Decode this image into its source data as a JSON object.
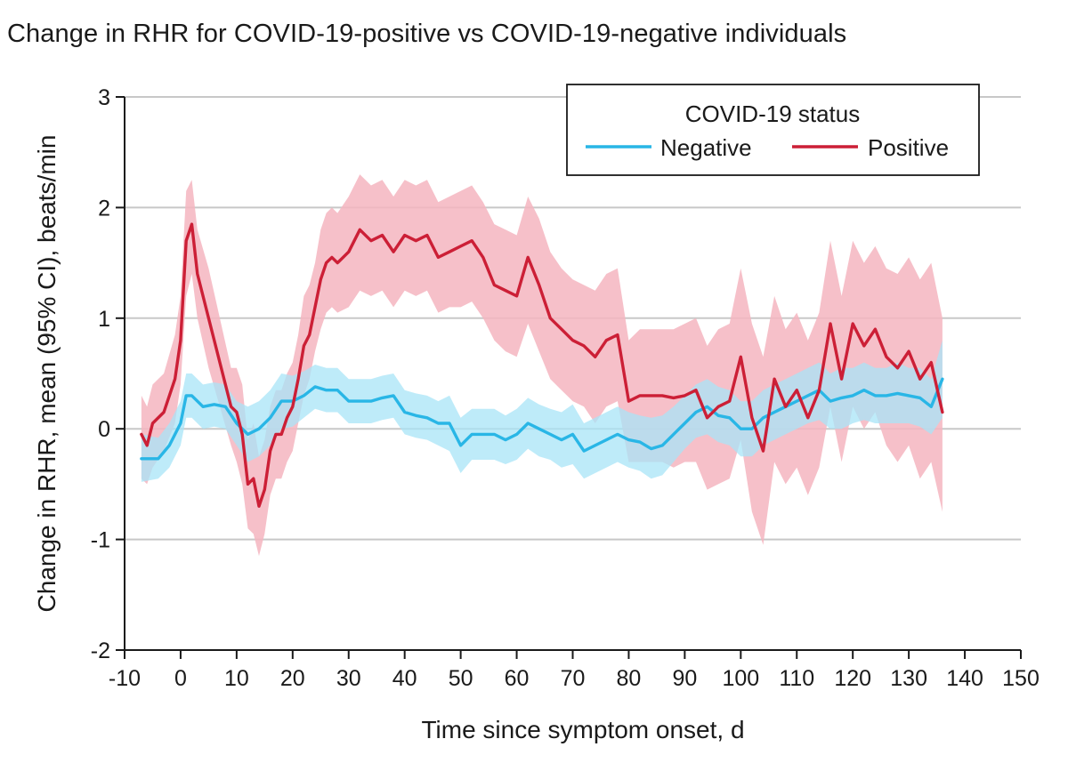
{
  "chart_data": {
    "type": "line",
    "title": "Change in RHR for COVID-19-positive vs COVID-19-negative individuals",
    "xlabel": "Time since symptom onset, d",
    "ylabel": "Change in RHR, mean (95% CI), beats/min",
    "xlim": [
      -10,
      150
    ],
    "ylim": [
      -2,
      3
    ],
    "xticks": [
      "-10",
      "0",
      "10",
      "20",
      "30",
      "40",
      "50",
      "60",
      "70",
      "80",
      "90",
      "100",
      "110",
      "120",
      "130",
      "140",
      "150"
    ],
    "yticks": [
      "3",
      "2",
      "1",
      "0",
      "-1",
      "-2"
    ],
    "grid": "horizontal",
    "legend": {
      "title": "COVID-19 status",
      "position": "top-right",
      "entries": [
        "Negative",
        "Positive"
      ]
    },
    "colors": {
      "negative_line": "#29b6e6",
      "negative_band": "#a8e4f7",
      "positive_line": "#cc1f36",
      "positive_band": "#f4b5bf",
      "grid": "#c8c8c8",
      "axis": "#1a1a1a"
    },
    "series": [
      {
        "name": "Negative",
        "x": [
          -7,
          -4,
          -2,
          0,
          1,
          2,
          4,
          6,
          8,
          10,
          12,
          14,
          16,
          18,
          20,
          22,
          24,
          26,
          28,
          30,
          32,
          34,
          36,
          38,
          40,
          42,
          44,
          46,
          48,
          50,
          52,
          54,
          56,
          58,
          60,
          62,
          64,
          66,
          68,
          70,
          72,
          74,
          76,
          78,
          80,
          82,
          84,
          86,
          88,
          90,
          92,
          94,
          96,
          98,
          100,
          102,
          104,
          106,
          108,
          110,
          112,
          114,
          116,
          118,
          120,
          122,
          124,
          126,
          128,
          130,
          132,
          134,
          136
        ],
        "y": [
          -0.27,
          -0.27,
          -0.15,
          0.05,
          0.3,
          0.3,
          0.2,
          0.22,
          0.2,
          0.05,
          -0.05,
          0.0,
          0.1,
          0.25,
          0.25,
          0.3,
          0.38,
          0.35,
          0.35,
          0.25,
          0.25,
          0.25,
          0.28,
          0.3,
          0.15,
          0.12,
          0.1,
          0.05,
          0.05,
          -0.15,
          -0.05,
          -0.05,
          -0.05,
          -0.1,
          -0.05,
          0.05,
          0.0,
          -0.05,
          -0.1,
          -0.05,
          -0.2,
          -0.15,
          -0.1,
          -0.05,
          -0.1,
          -0.12,
          -0.18,
          -0.15,
          -0.05,
          0.05,
          0.15,
          0.2,
          0.12,
          0.1,
          0.0,
          0.0,
          0.1,
          0.15,
          0.2,
          0.25,
          0.3,
          0.35,
          0.25,
          0.28,
          0.3,
          0.35,
          0.3,
          0.3,
          0.32,
          0.3,
          0.28,
          0.2,
          0.45
        ],
        "ci_lower": [
          -0.48,
          -0.45,
          -0.35,
          -0.15,
          0.1,
          0.1,
          0.0,
          0.02,
          0.0,
          -0.15,
          -0.3,
          -0.25,
          -0.15,
          0.0,
          0.02,
          0.1,
          0.18,
          0.15,
          0.15,
          0.05,
          0.05,
          0.05,
          0.08,
          0.1,
          -0.05,
          -0.08,
          -0.1,
          -0.15,
          -0.2,
          -0.4,
          -0.28,
          -0.28,
          -0.28,
          -0.32,
          -0.28,
          -0.18,
          -0.25,
          -0.28,
          -0.35,
          -0.32,
          -0.45,
          -0.4,
          -0.35,
          -0.3,
          -0.35,
          -0.38,
          -0.45,
          -0.42,
          -0.3,
          -0.18,
          -0.08,
          -0.05,
          -0.12,
          -0.15,
          -0.25,
          -0.25,
          -0.15,
          -0.1,
          -0.05,
          0.0,
          0.05,
          0.08,
          0.0,
          0.0,
          0.05,
          0.08,
          0.05,
          0.05,
          0.05,
          0.05,
          0.02,
          -0.05,
          0.1
        ],
        "ci_upper": [
          -0.05,
          -0.08,
          0.05,
          0.25,
          0.5,
          0.5,
          0.4,
          0.42,
          0.4,
          0.25,
          0.2,
          0.25,
          0.35,
          0.5,
          0.48,
          0.52,
          0.58,
          0.55,
          0.55,
          0.45,
          0.45,
          0.45,
          0.48,
          0.5,
          0.35,
          0.32,
          0.3,
          0.25,
          0.3,
          0.1,
          0.18,
          0.18,
          0.18,
          0.12,
          0.18,
          0.28,
          0.22,
          0.18,
          0.15,
          0.22,
          0.05,
          0.1,
          0.15,
          0.2,
          0.15,
          0.12,
          0.1,
          0.12,
          0.2,
          0.3,
          0.4,
          0.45,
          0.38,
          0.35,
          0.25,
          0.25,
          0.35,
          0.4,
          0.45,
          0.5,
          0.55,
          0.6,
          0.5,
          0.55,
          0.55,
          0.6,
          0.55,
          0.55,
          0.6,
          0.55,
          0.55,
          0.45,
          0.8
        ]
      },
      {
        "name": "Positive",
        "x": [
          -7,
          -6,
          -5,
          -3,
          -1,
          0,
          1,
          2,
          3,
          5,
          7,
          9,
          10,
          11,
          12,
          13,
          14,
          15,
          16,
          17,
          18,
          19,
          20,
          21,
          22,
          23,
          24,
          25,
          26,
          27,
          28,
          30,
          32,
          34,
          36,
          38,
          40,
          42,
          44,
          46,
          48,
          50,
          52,
          54,
          56,
          58,
          60,
          62,
          64,
          66,
          68,
          70,
          72,
          74,
          76,
          78,
          80,
          82,
          84,
          86,
          88,
          90,
          92,
          94,
          96,
          98,
          100,
          102,
          104,
          106,
          108,
          110,
          112,
          114,
          116,
          118,
          120,
          122,
          124,
          126,
          128,
          130,
          132,
          134,
          136
        ],
        "y": [
          -0.05,
          -0.15,
          0.05,
          0.15,
          0.45,
          0.8,
          1.7,
          1.85,
          1.4,
          1.0,
          0.6,
          0.2,
          0.15,
          -0.05,
          -0.5,
          -0.45,
          -0.7,
          -0.55,
          -0.2,
          -0.05,
          -0.05,
          0.1,
          0.2,
          0.45,
          0.75,
          0.85,
          1.1,
          1.35,
          1.5,
          1.55,
          1.5,
          1.6,
          1.8,
          1.7,
          1.75,
          1.6,
          1.75,
          1.7,
          1.75,
          1.55,
          1.6,
          1.65,
          1.7,
          1.55,
          1.3,
          1.25,
          1.2,
          1.55,
          1.3,
          1.0,
          0.9,
          0.8,
          0.75,
          0.65,
          0.8,
          0.85,
          0.25,
          0.3,
          0.3,
          0.3,
          0.28,
          0.3,
          0.35,
          0.1,
          0.2,
          0.25,
          0.65,
          0.1,
          -0.2,
          0.45,
          0.2,
          0.35,
          0.1,
          0.35,
          0.95,
          0.45,
          0.95,
          0.75,
          0.9,
          0.65,
          0.55,
          0.7,
          0.45,
          0.6,
          0.15
        ]
      }
    ],
    "positive_ci_lower": [
      -0.45,
      -0.5,
      -0.35,
      -0.2,
      0.05,
      0.4,
      1.2,
      1.4,
      1.0,
      0.55,
      0.2,
      -0.15,
      -0.3,
      -0.5,
      -0.9,
      -0.95,
      -1.15,
      -0.95,
      -0.6,
      -0.45,
      -0.45,
      -0.3,
      -0.2,
      0.05,
      0.3,
      0.45,
      0.7,
      0.9,
      1.05,
      1.1,
      1.05,
      1.1,
      1.25,
      1.2,
      1.25,
      1.1,
      1.25,
      1.2,
      1.25,
      1.05,
      1.1,
      1.1,
      1.15,
      1.0,
      0.8,
      0.7,
      0.65,
      0.95,
      0.7,
      0.45,
      0.35,
      0.25,
      0.2,
      0.05,
      0.2,
      0.25,
      -0.3,
      -0.3,
      -0.3,
      -0.3,
      -0.35,
      -0.3,
      -0.3,
      -0.55,
      -0.5,
      -0.45,
      -0.1,
      -0.75,
      -1.05,
      -0.3,
      -0.5,
      -0.35,
      -0.6,
      -0.35,
      0.2,
      -0.3,
      0.2,
      0.0,
      0.15,
      -0.15,
      -0.3,
      -0.15,
      -0.45,
      -0.3,
      -0.75
    ],
    "positive_ci_upper": [
      0.3,
      0.2,
      0.4,
      0.5,
      0.85,
      1.2,
      2.15,
      2.25,
      1.8,
      1.45,
      1.0,
      0.55,
      0.55,
      0.4,
      -0.1,
      0.05,
      -0.25,
      -0.1,
      0.2,
      0.35,
      0.35,
      0.5,
      0.6,
      0.85,
      1.2,
      1.3,
      1.5,
      1.8,
      1.95,
      2.0,
      1.95,
      2.1,
      2.3,
      2.2,
      2.25,
      2.1,
      2.25,
      2.2,
      2.25,
      2.05,
      2.1,
      2.15,
      2.2,
      2.05,
      1.85,
      1.8,
      1.75,
      2.1,
      1.9,
      1.6,
      1.45,
      1.35,
      1.3,
      1.25,
      1.4,
      1.45,
      0.8,
      0.9,
      0.9,
      0.9,
      0.9,
      0.95,
      1.0,
      0.75,
      0.9,
      0.95,
      1.45,
      0.95,
      0.65,
      1.2,
      0.9,
      1.05,
      0.8,
      1.05,
      1.7,
      1.2,
      1.7,
      1.5,
      1.65,
      1.45,
      1.4,
      1.55,
      1.35,
      1.5,
      1.0
    ]
  }
}
